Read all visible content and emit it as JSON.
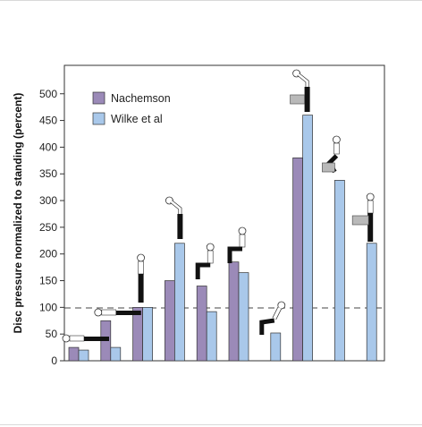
{
  "chart_data": {
    "type": "bar",
    "title": "",
    "xlabel": "",
    "ylabel": "Disc pressure normalized to standing (percent)",
    "ylim": [
      0,
      560
    ],
    "yticks": [
      0,
      50,
      100,
      150,
      200,
      250,
      300,
      350,
      400,
      450,
      500
    ],
    "reference_line": 100,
    "legend_position": "top-left",
    "categories": [
      "lying supine",
      "lying on side",
      "standing",
      "standing bent forward",
      "sitting relaxed",
      "sitting upright",
      "sitting slumped",
      "lifting weight bent forward",
      "lifting weight with knees bent",
      "holding weight close to body"
    ],
    "series": [
      {
        "name": "Nachemson",
        "color": "#9b8ab8",
        "values": [
          25,
          75,
          100,
          150,
          140,
          185,
          null,
          380,
          null,
          null
        ]
      },
      {
        "name": "Wilke et al",
        "color": "#a9c8ea",
        "values": [
          20,
          25,
          100,
          220,
          92,
          165,
          52,
          460,
          338,
          220
        ]
      }
    ]
  }
}
